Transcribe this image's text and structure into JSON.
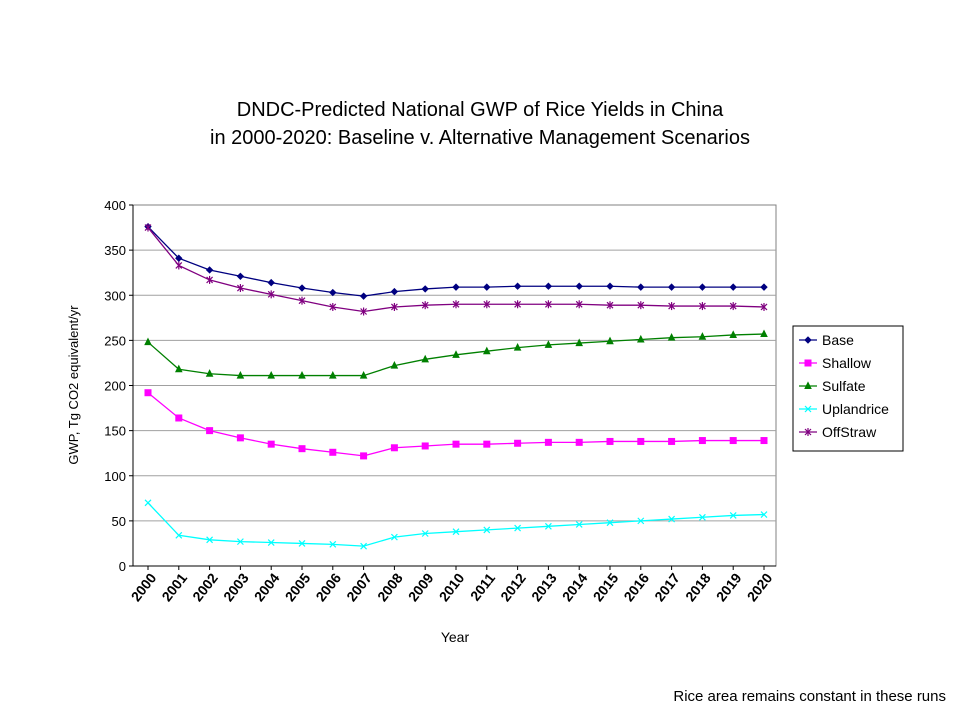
{
  "chart_data": {
    "type": "line",
    "title_lines": [
      "DNDC-Predicted National GWP of Rice Yields in China",
      "in 2000-2020: Baseline v. Alternative Management Scenarios"
    ],
    "xlabel": "Year",
    "ylabel": "GWP, Tg CO2 equivalent/yr",
    "ylim": [
      0,
      400
    ],
    "yticks": [
      "0",
      "50",
      "100",
      "150",
      "200",
      "250",
      "300",
      "350",
      "400"
    ],
    "categories": [
      "2000",
      "2001",
      "2002",
      "2003",
      "2004",
      "2005",
      "2006",
      "2007",
      "2008",
      "2009",
      "2010",
      "2011",
      "2012",
      "2013",
      "2014",
      "2015",
      "2016",
      "2017",
      "2018",
      "2019",
      "2020"
    ],
    "grid": "horizontal",
    "legend_position": "right",
    "series": [
      {
        "name": "Base",
        "color": "#000080",
        "marker": "diamond",
        "values": [
          376,
          341,
          328,
          321,
          314,
          308,
          303,
          299,
          304,
          307,
          309,
          309,
          310,
          310,
          310,
          310,
          309,
          309,
          309,
          309,
          309
        ]
      },
      {
        "name": "Shallow",
        "color": "#ff00ff",
        "marker": "square",
        "values": [
          192,
          164,
          150,
          142,
          135,
          130,
          126,
          122,
          131,
          133,
          135,
          135,
          136,
          137,
          137,
          138,
          138,
          138,
          139,
          139,
          139
        ]
      },
      {
        "name": "Sulfate",
        "color": "#008000",
        "marker": "triangle",
        "values": [
          248,
          218,
          213,
          211,
          211,
          211,
          211,
          211,
          222,
          229,
          234,
          238,
          242,
          245,
          247,
          249,
          251,
          253,
          254,
          256,
          257
        ]
      },
      {
        "name": "Uplandrice",
        "color": "#00ffff",
        "marker": "x",
        "values": [
          70,
          34,
          29,
          27,
          26,
          25,
          24,
          22,
          32,
          36,
          38,
          40,
          42,
          44,
          46,
          48,
          50,
          52,
          54,
          56,
          57
        ]
      },
      {
        "name": "OffStraw",
        "color": "#800080",
        "marker": "star",
        "values": [
          375,
          333,
          317,
          308,
          301,
          294,
          287,
          282,
          287,
          289,
          290,
          290,
          290,
          290,
          290,
          289,
          289,
          288,
          288,
          288,
          287
        ]
      }
    ]
  },
  "footnote": "Rice area remains constant in these runs"
}
